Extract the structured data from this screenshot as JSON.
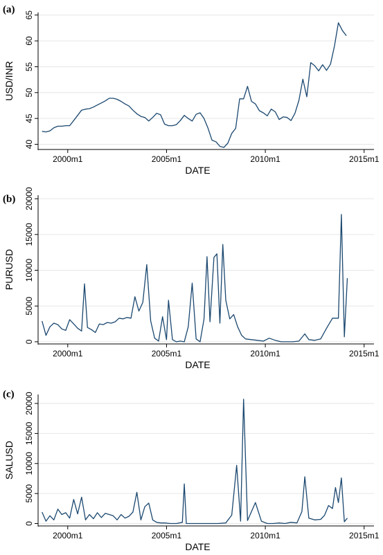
{
  "series_color": "#1a476f",
  "chart_data": [
    {
      "type": "line",
      "panel_label": "(a)",
      "xlabel": "DATE",
      "ylabel": "USD/INR",
      "x_ticks": [
        {
          "label": "2000m1",
          "value": 2000
        },
        {
          "label": "2005m1",
          "value": 2005
        },
        {
          "label": "2010m1",
          "value": 2010
        },
        {
          "label": "2015m1",
          "value": 2015
        }
      ],
      "y_ticks": [
        40,
        45,
        50,
        55,
        60,
        65
      ],
      "xlim": [
        1998.5,
        2015.5
      ],
      "ylim": [
        39,
        65.5
      ],
      "grid": true,
      "x": [
        1998.7,
        1998.9,
        1999.1,
        1999.3,
        1999.5,
        1999.7,
        1999.9,
        2000.1,
        2000.3,
        2000.5,
        2000.7,
        2000.9,
        2001.1,
        2001.3,
        2001.5,
        2001.7,
        2001.9,
        2002.1,
        2002.3,
        2002.5,
        2002.7,
        2002.9,
        2003.1,
        2003.3,
        2003.5,
        2003.7,
        2003.9,
        2004.1,
        2004.3,
        2004.5,
        2004.7,
        2004.9,
        2005.1,
        2005.3,
        2005.5,
        2005.7,
        2005.9,
        2006.1,
        2006.3,
        2006.5,
        2006.7,
        2006.9,
        2007.1,
        2007.3,
        2007.5,
        2007.7,
        2007.9,
        2008.1,
        2008.3,
        2008.5,
        2008.7,
        2008.9,
        2009.1,
        2009.3,
        2009.5,
        2009.7,
        2009.9,
        2010.1,
        2010.3,
        2010.5,
        2010.7,
        2010.9,
        2011.1,
        2011.3,
        2011.5,
        2011.7,
        2011.9,
        2012.1,
        2012.3,
        2012.5,
        2012.7,
        2012.9,
        2013.1,
        2013.3,
        2013.5,
        2013.7,
        2013.9,
        2014.1
      ],
      "y": [
        42.5,
        42.4,
        42.6,
        43.2,
        43.5,
        43.5,
        43.6,
        43.6,
        44.6,
        45.6,
        46.6,
        46.8,
        46.9,
        47.2,
        47.6,
        48.0,
        48.4,
        48.9,
        48.9,
        48.7,
        48.3,
        47.8,
        47.4,
        46.6,
        45.9,
        45.4,
        45.2,
        44.5,
        45.2,
        46.0,
        45.7,
        43.9,
        43.6,
        43.6,
        43.8,
        44.6,
        45.6,
        45.0,
        44.5,
        45.8,
        46.1,
        45.0,
        43.1,
        40.8,
        40.5,
        39.6,
        39.4,
        40.2,
        42.1,
        43.1,
        48.8,
        48.8,
        51.2,
        48.3,
        47.8,
        46.5,
        46.1,
        45.5,
        46.8,
        46.3,
        44.8,
        45.3,
        45.2,
        44.6,
        46.0,
        48.5,
        52.6,
        49.2,
        55.8,
        55.2,
        54.2,
        55.4,
        54.3,
        55.5,
        59.0,
        63.5,
        62.0,
        61.0
      ]
    },
    {
      "type": "line",
      "panel_label": "(b)",
      "xlabel": "DATE",
      "ylabel": "PURUSD",
      "x_ticks": [
        {
          "label": "2000m1",
          "value": 2000
        },
        {
          "label": "2005m1",
          "value": 2005
        },
        {
          "label": "2010m1",
          "value": 2010
        },
        {
          "label": "2015m1",
          "value": 2015
        }
      ],
      "y_ticks": [
        0,
        5000,
        10000,
        15000,
        20000
      ],
      "xlim": [
        1998.5,
        2015.5
      ],
      "ylim": [
        -300,
        20500
      ],
      "grid": true,
      "x": [
        1998.7,
        1998.9,
        1999.1,
        1999.3,
        1999.5,
        1999.7,
        1999.9,
        2000.1,
        2000.3,
        2000.5,
        2000.7,
        2000.85,
        2001.0,
        2001.2,
        2001.4,
        2001.6,
        2001.8,
        2002.0,
        2002.2,
        2002.4,
        2002.6,
        2002.8,
        2003.0,
        2003.2,
        2003.4,
        2003.6,
        2003.8,
        2004.0,
        2004.2,
        2004.4,
        2004.6,
        2004.8,
        2005.0,
        2005.1,
        2005.3,
        2005.5,
        2005.7,
        2005.9,
        2006.1,
        2006.3,
        2006.5,
        2006.7,
        2006.9,
        2007.05,
        2007.2,
        2007.4,
        2007.55,
        2007.7,
        2007.85,
        2008.0,
        2008.2,
        2008.4,
        2008.6,
        2008.8,
        2009.0,
        2009.3,
        2009.6,
        2009.9,
        2010.2,
        2010.5,
        2010.8,
        2011.1,
        2011.4,
        2011.7,
        2012.0,
        2012.2,
        2012.5,
        2012.8,
        2013.1,
        2013.4,
        2013.7,
        2013.85,
        2014.0,
        2014.15
      ],
      "y": [
        2900,
        900,
        2100,
        2600,
        2400,
        1800,
        1600,
        3100,
        2500,
        1900,
        1500,
        8100,
        2000,
        1700,
        1300,
        2500,
        2400,
        2700,
        2600,
        2800,
        3300,
        3200,
        3400,
        3300,
        6300,
        4300,
        5500,
        10800,
        2900,
        500,
        100,
        3500,
        300,
        5800,
        300,
        0,
        100,
        0,
        2100,
        8200,
        400,
        0,
        3200,
        11900,
        2800,
        11800,
        12300,
        2600,
        13600,
        5800,
        3200,
        3800,
        2100,
        900,
        400,
        300,
        200,
        100,
        500,
        200,
        0,
        0,
        0,
        100,
        1100,
        300,
        200,
        400,
        1900,
        3300,
        3300,
        17800,
        700,
        8900
      ]
    },
    {
      "type": "line",
      "panel_label": "(c)",
      "xlabel": "DATE",
      "ylabel": "SALUSD",
      "x_ticks": [
        {
          "label": "2000m1",
          "value": 2000
        },
        {
          "label": "2005m1",
          "value": 2005
        },
        {
          "label": "2010m1",
          "value": 2010
        },
        {
          "label": "2015m1",
          "value": 2015
        }
      ],
      "y_ticks": [
        0,
        5000,
        10000,
        15000,
        20000
      ],
      "xlim": [
        1998.5,
        2015.5
      ],
      "ylim": [
        -400,
        21500
      ],
      "grid": true,
      "x": [
        1998.7,
        1998.9,
        1999.1,
        1999.3,
        1999.5,
        1999.7,
        1999.9,
        2000.1,
        2000.3,
        2000.5,
        2000.7,
        2000.9,
        2001.1,
        2001.3,
        2001.5,
        2001.7,
        2001.9,
        2002.1,
        2002.3,
        2002.5,
        2002.7,
        2002.9,
        2003.1,
        2003.3,
        2003.5,
        2003.7,
        2003.9,
        2004.1,
        2004.3,
        2004.5,
        2004.7,
        2004.9,
        2005.2,
        2005.5,
        2005.8,
        2005.9,
        2006.0,
        2006.4,
        2006.8,
        2007.2,
        2007.6,
        2008.0,
        2008.3,
        2008.55,
        2008.75,
        2008.9,
        2009.1,
        2009.3,
        2009.5,
        2009.8,
        2010.1,
        2010.4,
        2010.7,
        2011.0,
        2011.3,
        2011.6,
        2011.85,
        2012.0,
        2012.2,
        2012.5,
        2012.8,
        2013.0,
        2013.2,
        2013.4,
        2013.55,
        2013.7,
        2013.85,
        2014.0,
        2014.15
      ],
      "y": [
        1900,
        400,
        1300,
        600,
        2400,
        1500,
        1800,
        900,
        4000,
        1600,
        4400,
        600,
        1500,
        800,
        1800,
        1000,
        1700,
        1500,
        1300,
        600,
        1500,
        900,
        1200,
        1900,
        5200,
        600,
        2800,
        3400,
        600,
        200,
        100,
        100,
        0,
        0,
        200,
        6600,
        0,
        0,
        0,
        0,
        0,
        100,
        1400,
        9700,
        400,
        20700,
        500,
        2000,
        3500,
        400,
        0,
        0,
        100,
        0,
        200,
        100,
        2000,
        7800,
        900,
        600,
        700,
        1400,
        3000,
        2500,
        6000,
        3500,
        7600,
        300,
        900
      ]
    }
  ]
}
